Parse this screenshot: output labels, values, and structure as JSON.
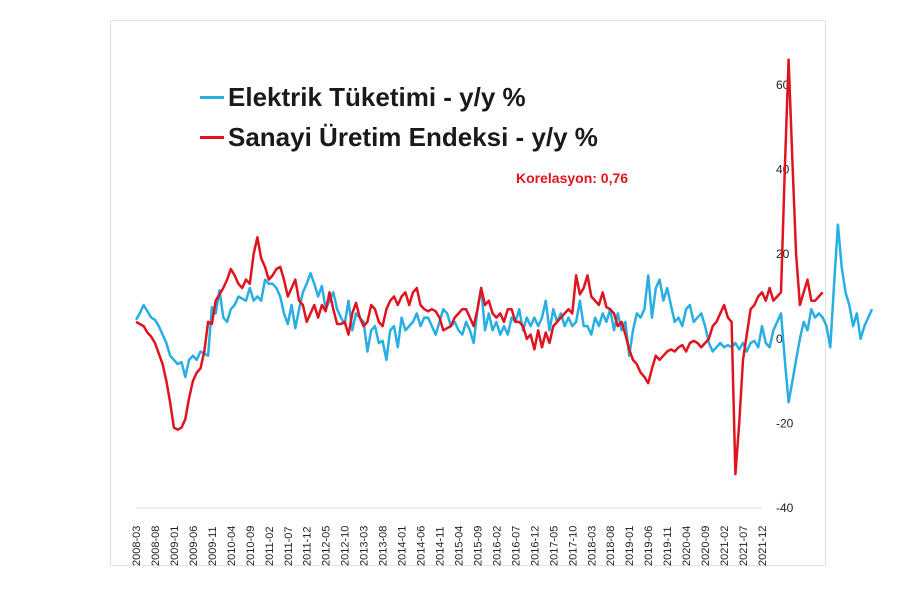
{
  "chart_data": {
    "type": "line",
    "title": "",
    "xlabel": "",
    "ylabel": "",
    "ylim": [
      -40,
      70
    ],
    "yticks": [
      60,
      40,
      20,
      0,
      -20,
      -40
    ],
    "y_axis_side": "right",
    "grid": false,
    "legend_placement": "top-left",
    "x_start": "2008-03",
    "x_step_months": 1,
    "x_tick_labels": [
      "2008-03",
      "2008-08",
      "2009-01",
      "2009-06",
      "2009-11",
      "2010-04",
      "2010-09",
      "2011-02",
      "2011-07",
      "2011-12",
      "2012-05",
      "2012-10",
      "2013-03",
      "2013-08",
      "2014-01",
      "2014-06",
      "2014-11",
      "2015-04",
      "2015-09",
      "2016-02",
      "2016-07",
      "2016-12",
      "2017-05",
      "2017-10",
      "2018-03",
      "2018-08",
      "2019-01",
      "2019-06",
      "2019-11",
      "2020-04",
      "2020-09",
      "2021-02",
      "2021-07",
      "2021-12"
    ],
    "series": [
      {
        "name": "Elektrik Tüketimi -  y/y %",
        "color": "#29aee3",
        "values": [
          4.5,
          6,
          8,
          6.5,
          5,
          4.5,
          3,
          1,
          -1,
          -4,
          -5,
          -6,
          -5.5,
          -9,
          -5,
          -4,
          -5,
          -3,
          -3.5,
          -4,
          7.5,
          6,
          11.5,
          5,
          4,
          7,
          8,
          10,
          9.5,
          9,
          12,
          9,
          10,
          9,
          14,
          13,
          13,
          12,
          10,
          6,
          3.5,
          8,
          2.5,
          7,
          11,
          13,
          15.5,
          13,
          10,
          12.5,
          7,
          9,
          11,
          7,
          5,
          3.5,
          9,
          2,
          6,
          5,
          4,
          -3,
          2,
          3,
          -1,
          -0.5,
          -5,
          2,
          3,
          -2,
          5,
          2,
          3,
          4,
          6,
          3,
          5,
          5,
          3,
          1,
          4,
          7,
          6,
          3,
          4,
          2,
          1,
          4,
          2,
          -1,
          7,
          12,
          2,
          6,
          2,
          4,
          1,
          3,
          1,
          5,
          4,
          7,
          2,
          5,
          3,
          5,
          3,
          5,
          9,
          2,
          7,
          4,
          6,
          3,
          5,
          3,
          4,
          9,
          3,
          3,
          1,
          5,
          3,
          6,
          4,
          7,
          2,
          6,
          2,
          4,
          -4,
          2,
          6,
          5,
          7,
          15,
          5,
          12,
          14,
          9,
          12,
          8,
          4,
          5,
          3,
          7,
          8,
          4,
          5,
          6,
          3,
          -1,
          -3,
          -2,
          -1,
          -2,
          -1.5,
          -2,
          -1,
          -2.5,
          -1,
          -3,
          -1,
          -0.5,
          -2,
          3,
          -1,
          -2,
          2,
          4,
          6,
          -5,
          -15,
          -10,
          -5,
          0,
          4,
          2,
          7,
          5,
          6,
          5,
          3,
          -2,
          13,
          27,
          17,
          11,
          8,
          3,
          6,
          0,
          3,
          5,
          7
        ]
      },
      {
        "name": "Sanayi Üretim Endeksi -  y/y %",
        "color": "#e0141e",
        "values": [
          4,
          3.5,
          3,
          1.5,
          0.5,
          -1,
          -3.5,
          -6,
          -10,
          -15,
          -21,
          -21.5,
          -21,
          -19,
          -14,
          -10,
          -8,
          -7,
          -3,
          4,
          3.5,
          9,
          10.5,
          12,
          14,
          16.5,
          15,
          13,
          12,
          14,
          13,
          20,
          24,
          19,
          17,
          14,
          15,
          16.5,
          17,
          14,
          10,
          12,
          14,
          9,
          8,
          4,
          6,
          8,
          5,
          8,
          6.5,
          11,
          7,
          3.5,
          3.5,
          4,
          1,
          6,
          8.5,
          5,
          3,
          4,
          8,
          7,
          4,
          3,
          7,
          9,
          10,
          8,
          10,
          11,
          8,
          11,
          12,
          8,
          7,
          6.5,
          7,
          6.5,
          5,
          2,
          2.5,
          3,
          5,
          6,
          7,
          7,
          5,
          3,
          7,
          12,
          8,
          9,
          6,
          5,
          6,
          4,
          7,
          7,
          4,
          4,
          3,
          0,
          1,
          -2.5,
          2,
          -2,
          1.5,
          -1,
          3,
          4,
          5,
          6,
          7,
          6,
          15,
          10.5,
          12,
          15,
          10,
          9,
          8,
          11,
          7.5,
          7,
          6,
          3,
          4,
          1,
          -2.5,
          -5,
          -6,
          -8,
          -9,
          -10.5,
          -7,
          -4,
          -5,
          -4,
          -3,
          -2.5,
          -3,
          -2,
          -1.5,
          -3,
          -1,
          -0.5,
          -1,
          -2,
          -1,
          0,
          3,
          4,
          6,
          8,
          5,
          4,
          -32,
          -20,
          -5,
          1,
          7,
          8,
          10,
          11,
          9,
          12,
          9,
          10,
          11,
          40,
          66,
          42,
          20,
          8,
          11,
          14,
          9,
          9,
          10,
          11
        ]
      }
    ],
    "annotation": "Korelasyon: 0,76"
  }
}
